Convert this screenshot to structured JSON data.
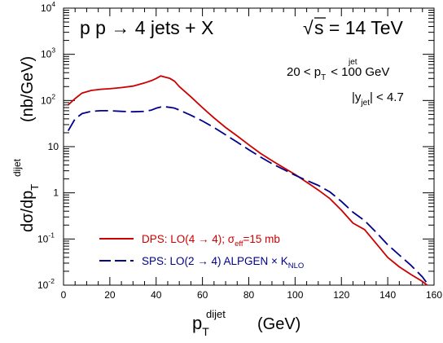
{
  "chart_data": {
    "type": "line",
    "title": "p p → 4 jets + X",
    "energy_label": "s = 14 TeV",
    "energy_sqrt": "√",
    "cuts": {
      "pt_cut_left": "20 < p",
      "pt_cut_sub": "T",
      "pt_cut_sup": "jet",
      "pt_cut_right": "< 100 GeV",
      "eta_cut_left": "|y",
      "eta_cut_sub": "jet",
      "eta_cut_right": "| < 4.7"
    },
    "xlabel": {
      "main": "p",
      "sub": "T",
      "sup": "dijet",
      "unit": "(GeV)"
    },
    "ylabel": {
      "main": "dσ/dp",
      "sub": "T",
      "sup": "dijet",
      "unit": "(nb/GeV)"
    },
    "xlim": [
      0,
      160
    ],
    "ylim": [
      0.01,
      10000
    ],
    "yscale": "log",
    "x_ticks": [
      {
        "v": 0,
        "label": "0"
      },
      {
        "v": 20,
        "label": "20"
      },
      {
        "v": 40,
        "label": "40"
      },
      {
        "v": 60,
        "label": "60"
      },
      {
        "v": 80,
        "label": "80"
      },
      {
        "v": 100,
        "label": "100"
      },
      {
        "v": 120,
        "label": "120"
      },
      {
        "v": 140,
        "label": "140"
      },
      {
        "v": 160,
        "label": "160"
      }
    ],
    "y_ticks": [
      {
        "v": 0.01,
        "base": "10",
        "exp": "-2"
      },
      {
        "v": 0.1,
        "base": "10",
        "exp": "-1"
      },
      {
        "v": 1,
        "base": "1",
        "exp": ""
      },
      {
        "v": 10,
        "base": "10",
        "exp": ""
      },
      {
        "v": 100,
        "base": "10",
        "exp": "2"
      },
      {
        "v": 1000,
        "base": "10",
        "exp": "3"
      },
      {
        "v": 10000,
        "base": "10",
        "exp": "4"
      }
    ],
    "series": [
      {
        "id": "dps",
        "legend_main": "DPS: LO(4 → 4); σ",
        "legend_sub": "eff",
        "legend_tail": "=15 mb",
        "color": "#cc0000",
        "dash": "solid",
        "x": [
          2,
          5,
          8,
          12,
          16,
          20,
          25,
          30,
          35,
          38,
          40,
          42,
          44,
          46,
          48,
          50,
          55,
          60,
          65,
          70,
          75,
          80,
          85,
          90,
          95,
          100,
          105,
          110,
          115,
          120,
          125,
          130,
          135,
          140,
          145,
          150,
          155,
          157
        ],
        "y": [
          80,
          110,
          145,
          165,
          175,
          180,
          190,
          205,
          240,
          270,
          300,
          340,
          320,
          300,
          260,
          200,
          120,
          70,
          42,
          26,
          17,
          11,
          7.2,
          5.0,
          3.5,
          2.5,
          1.7,
          1.15,
          0.75,
          0.42,
          0.22,
          0.16,
          0.08,
          0.04,
          0.025,
          0.017,
          0.012,
          0.01
        ]
      },
      {
        "id": "sps",
        "legend_main": "SPS: LO(2 → 4) ALPGEN × K",
        "legend_sub": "NLO",
        "legend_tail": "",
        "color": "#00008b",
        "dash": "long-dash",
        "x": [
          2,
          5,
          8,
          12,
          16,
          20,
          25,
          30,
          35,
          38,
          40,
          42,
          44,
          46,
          48,
          50,
          55,
          60,
          65,
          70,
          75,
          80,
          85,
          90,
          95,
          100,
          105,
          110,
          115,
          120,
          125,
          130,
          135,
          140,
          145,
          150,
          155,
          157
        ],
        "y": [
          22,
          40,
          52,
          58,
          60,
          60,
          58,
          57,
          58,
          62,
          68,
          72,
          73,
          71,
          68,
          62,
          48,
          36,
          26,
          18,
          12.5,
          8.6,
          6.0,
          4.3,
          3.2,
          2.4,
          1.85,
          1.45,
          1.05,
          0.65,
          0.38,
          0.25,
          0.14,
          0.075,
          0.045,
          0.027,
          0.015,
          0.011
        ]
      }
    ]
  }
}
